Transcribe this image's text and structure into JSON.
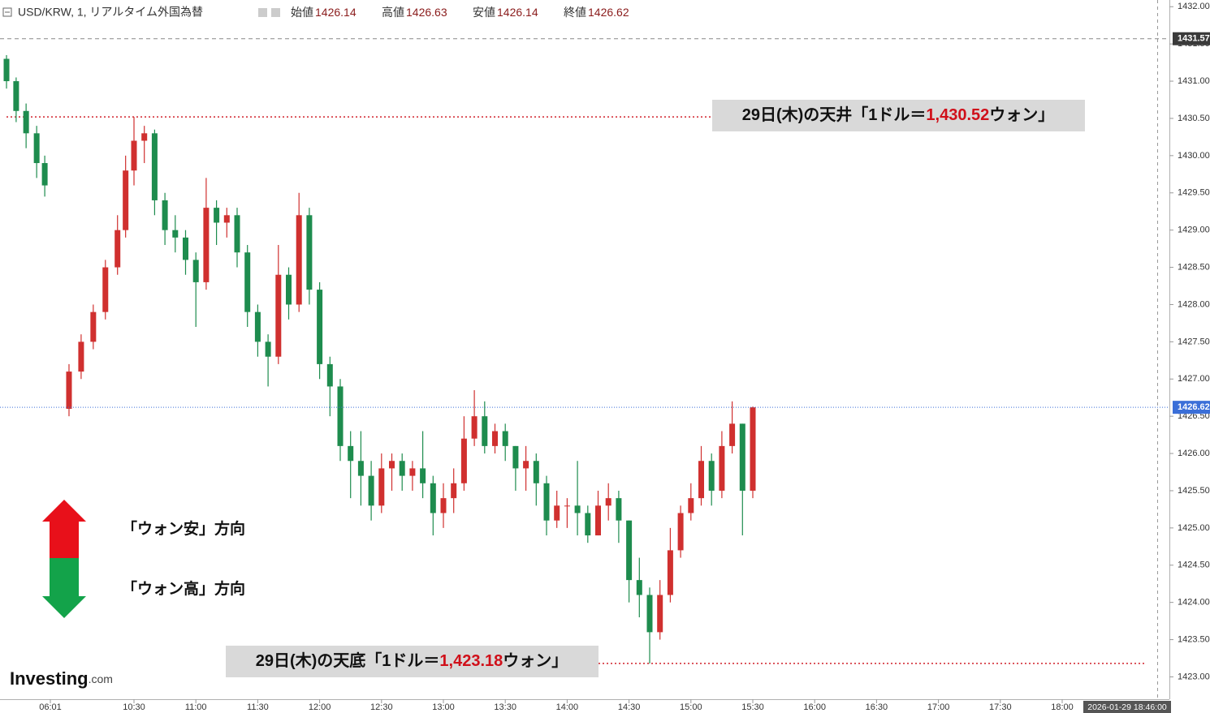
{
  "header": {
    "symbol": "USD/KRW, 1, リアルタイム外国為替",
    "ohlc": [
      {
        "label": "始値",
        "value": 1426.14
      },
      {
        "label": "高値",
        "value": 1426.63
      },
      {
        "label": "安値",
        "value": 1426.14
      },
      {
        "label": "終値",
        "value": 1426.62
      }
    ]
  },
  "chart_data": {
    "type": "candlestick",
    "x": [
      "03:40",
      "04:11",
      "04:43",
      "05:17",
      "05:43",
      "07:01",
      "07:40",
      "08:19",
      "08:58",
      "09:37",
      "10:03",
      "10:30",
      "10:35",
      "10:40",
      "10:45",
      "10:50",
      "10:55",
      "11:00",
      "11:05",
      "11:10",
      "11:15",
      "11:20",
      "11:25",
      "11:30",
      "11:35",
      "11:40",
      "11:45",
      "11:50",
      "11:55",
      "12:00",
      "12:05",
      "12:10",
      "12:15",
      "12:20",
      "12:25",
      "12:30",
      "12:35",
      "12:40",
      "12:45",
      "12:50",
      "12:55",
      "13:00",
      "13:05",
      "13:10",
      "13:15",
      "13:20",
      "13:25",
      "13:30",
      "13:35",
      "13:40",
      "13:45",
      "13:50",
      "13:55",
      "14:00",
      "14:05",
      "14:10",
      "14:15",
      "14:20",
      "14:25",
      "14:30",
      "14:35",
      "14:40",
      "14:45",
      "14:50",
      "14:55",
      "15:00",
      "15:05",
      "15:10",
      "15:15",
      "15:20",
      "15:25",
      "15:30"
    ],
    "open": [
      1431.3,
      1431.0,
      1430.6,
      1430.3,
      1429.9,
      1426.6,
      1427.1,
      1427.5,
      1427.9,
      1428.5,
      1429.0,
      1429.8,
      1430.2,
      1430.3,
      1429.4,
      1429.0,
      1428.9,
      1428.6,
      1428.3,
      1429.3,
      1429.1,
      1429.2,
      1428.7,
      1427.9,
      1427.5,
      1427.3,
      1428.4,
      1428.0,
      1429.2,
      1428.2,
      1427.2,
      1426.9,
      1426.1,
      1425.9,
      1425.7,
      1425.3,
      1425.8,
      1425.9,
      1425.7,
      1425.8,
      1425.6,
      1425.2,
      1425.4,
      1425.6,
      1426.2,
      1426.5,
      1426.1,
      1426.3,
      1426.1,
      1425.8,
      1425.9,
      1425.6,
      1425.1,
      1425.3,
      1425.3,
      1425.2,
      1424.9,
      1425.3,
      1425.4,
      1425.1,
      1424.3,
      1424.1,
      1423.6,
      1424.1,
      1424.7,
      1425.2,
      1425.4,
      1425.9,
      1425.5,
      1426.1,
      1426.4,
      1425.5
    ],
    "high": [
      1431.35,
      1431.05,
      1430.7,
      1430.4,
      1430.0,
      1427.2,
      1427.6,
      1428.0,
      1428.6,
      1429.2,
      1430.0,
      1430.52,
      1430.4,
      1430.35,
      1429.5,
      1429.2,
      1429.0,
      1428.7,
      1429.7,
      1429.4,
      1429.3,
      1429.3,
      1428.8,
      1428.0,
      1427.6,
      1428.8,
      1428.5,
      1429.5,
      1429.3,
      1428.3,
      1427.3,
      1427.0,
      1426.3,
      1426.3,
      1425.9,
      1426.0,
      1426.0,
      1426.0,
      1425.9,
      1426.3,
      1425.7,
      1425.6,
      1425.8,
      1426.5,
      1426.85,
      1426.7,
      1426.4,
      1426.4,
      1426.1,
      1426.1,
      1426.0,
      1425.7,
      1425.5,
      1425.4,
      1425.9,
      1425.3,
      1425.5,
      1425.6,
      1425.5,
      1425.1,
      1424.6,
      1424.2,
      1424.3,
      1425.0,
      1425.3,
      1425.6,
      1426.1,
      1426.0,
      1426.3,
      1426.7,
      1426.4,
      1426.63
    ],
    "low": [
      1430.9,
      1430.45,
      1430.1,
      1429.7,
      1429.45,
      1426.5,
      1427.0,
      1427.4,
      1427.8,
      1428.4,
      1428.9,
      1429.6,
      1429.9,
      1429.2,
      1428.8,
      1428.7,
      1428.4,
      1427.7,
      1428.2,
      1428.8,
      1428.9,
      1428.5,
      1427.7,
      1427.3,
      1426.9,
      1427.2,
      1427.8,
      1427.9,
      1428.0,
      1427.0,
      1426.5,
      1425.9,
      1425.4,
      1425.3,
      1425.1,
      1425.2,
      1425.5,
      1425.5,
      1425.5,
      1425.4,
      1424.9,
      1425.0,
      1425.2,
      1425.5,
      1426.1,
      1426.0,
      1426.0,
      1425.9,
      1425.5,
      1425.5,
      1425.3,
      1424.9,
      1425.0,
      1425.0,
      1424.9,
      1424.8,
      1424.9,
      1425.1,
      1424.8,
      1424.0,
      1423.8,
      1423.18,
      1423.5,
      1424.0,
      1424.6,
      1425.1,
      1425.3,
      1425.3,
      1425.4,
      1426.0,
      1424.9,
      1425.4
    ],
    "close": [
      1431.0,
      1430.6,
      1430.3,
      1429.9,
      1429.6,
      1427.1,
      1427.5,
      1427.9,
      1428.5,
      1429.0,
      1429.8,
      1430.2,
      1430.3,
      1429.4,
      1429.0,
      1428.9,
      1428.6,
      1428.3,
      1429.3,
      1429.1,
      1429.2,
      1428.7,
      1427.9,
      1427.5,
      1427.3,
      1428.4,
      1428.0,
      1429.2,
      1428.2,
      1427.2,
      1426.9,
      1426.1,
      1425.9,
      1425.7,
      1425.3,
      1425.8,
      1425.9,
      1425.7,
      1425.8,
      1425.6,
      1425.2,
      1425.4,
      1425.6,
      1426.2,
      1426.5,
      1426.1,
      1426.3,
      1426.1,
      1425.8,
      1425.9,
      1425.6,
      1425.1,
      1425.3,
      1425.3,
      1425.2,
      1424.9,
      1425.3,
      1425.4,
      1425.1,
      1424.3,
      1424.1,
      1423.6,
      1424.1,
      1424.7,
      1425.2,
      1425.4,
      1425.9,
      1425.5,
      1426.1,
      1426.4,
      1425.5,
      1426.62
    ],
    "up_color": "#d0302f",
    "down_color": "#1e8c4e",
    "ylim": [
      1422.7,
      1432.09
    ],
    "yticks": [
      {
        "value": 1423,
        "label": "1423.00"
      },
      {
        "value": 1423.5,
        "label": "1423.50"
      },
      {
        "value": 1424,
        "label": "1424.00"
      },
      {
        "value": 1424.5,
        "label": "1424.50"
      },
      {
        "value": 1425,
        "label": "1425.00"
      },
      {
        "value": 1425.5,
        "label": "1425.50"
      },
      {
        "value": 1426,
        "label": "1426.00"
      },
      {
        "value": 1426.5,
        "label": "1426.50"
      },
      {
        "value": 1427,
        "label": "1427.00"
      },
      {
        "value": 1427.5,
        "label": "1427.50"
      },
      {
        "value": 1428,
        "label": "1428.00"
      },
      {
        "value": 1428.5,
        "label": "1428.50"
      },
      {
        "value": 1429,
        "label": "1429.00"
      },
      {
        "value": 1429.5,
        "label": "1429.50"
      },
      {
        "value": 1430,
        "label": "1430.00"
      },
      {
        "value": 1430.5,
        "label": "1430.50"
      },
      {
        "value": 1431,
        "label": "1431.00"
      },
      {
        "value": 1431.5,
        "label": "1431.50"
      },
      {
        "value": 1432,
        "label": "1432.00"
      }
    ],
    "xticks": [
      "06:01",
      "10:30",
      "11:00",
      "11:30",
      "12:00",
      "12:30",
      "13:00",
      "13:30",
      "14:00",
      "14:30",
      "15:00",
      "15:30",
      "16:00",
      "16:30",
      "17:00",
      "17:30",
      "18:00"
    ],
    "high_marker": 1431.57,
    "last_price": 1426.62,
    "last_color": "#3b6fd8",
    "annotations": [
      {
        "prefix": "29日(木)の天井「1ドル＝",
        "value": 1430.52,
        "label": "1,430.52",
        "suffix": "ウォン」"
      },
      {
        "prefix": "29日(木)の天底「1ドル＝",
        "value": 1423.18,
        "label": "1,423.18",
        "suffix": "ウォン」"
      }
    ],
    "timestamp": "2026-01-29 18:46:00"
  },
  "legend_arrows": {
    "up": "「ウォン安」方向",
    "down": "「ウォン高」方向"
  },
  "logo": {
    "name": "Investing",
    "suffix": ".com"
  }
}
